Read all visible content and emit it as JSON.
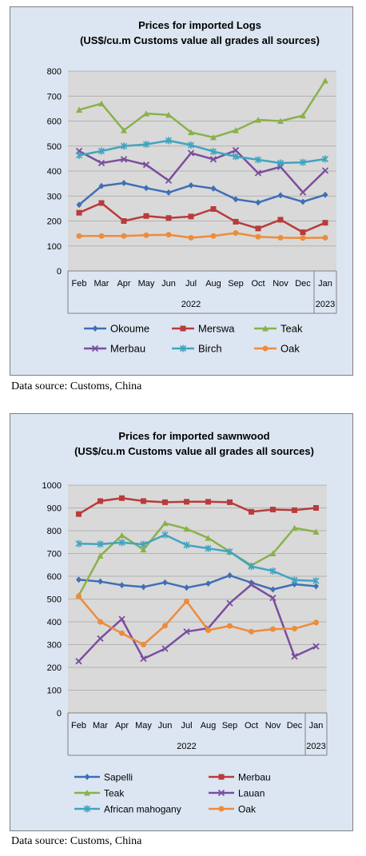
{
  "chart_data": [
    {
      "type": "line",
      "title": "Prices for imported Logs",
      "subtitle": "(US$/cu.m Customs value all grades all sources)",
      "ylim": [
        0,
        800
      ],
      "yticks": [
        0,
        100,
        200,
        300,
        400,
        500,
        600,
        700,
        800
      ],
      "categories": [
        "Feb",
        "Mar",
        "Apr",
        "May",
        "Jun",
        "Jul",
        "Aug",
        "Sep",
        "Oct",
        "Nov",
        "Dec",
        "Jan"
      ],
      "year_groups": [
        {
          "label": "2022",
          "span": 11
        },
        {
          "label": "2023",
          "span": 1
        }
      ],
      "grid": true,
      "legend_position": "bottom",
      "series": [
        {
          "name": "Okoume",
          "color": "#3f6fb5",
          "marker": "diamond",
          "values": [
            265,
            340,
            352,
            332,
            314,
            343,
            330,
            287,
            274,
            303,
            277,
            305
          ]
        },
        {
          "name": "Merswa",
          "color": "#b93b3b",
          "marker": "square",
          "values": [
            233,
            272,
            200,
            220,
            212,
            218,
            248,
            197,
            170,
            205,
            155,
            193
          ]
        },
        {
          "name": "Teak",
          "color": "#8ab14b",
          "marker": "triangle",
          "values": [
            645,
            670,
            563,
            630,
            625,
            555,
            535,
            563,
            605,
            600,
            622,
            762
          ]
        },
        {
          "name": "Merbau",
          "color": "#7a4e9e",
          "marker": "x",
          "values": [
            480,
            432,
            447,
            425,
            362,
            472,
            447,
            483,
            392,
            417,
            315,
            402
          ]
        },
        {
          "name": "Birch",
          "color": "#42a4bf",
          "marker": "star",
          "values": [
            463,
            480,
            500,
            507,
            522,
            504,
            478,
            458,
            445,
            432,
            435,
            448
          ]
        },
        {
          "name": "Oak",
          "color": "#ed8c3a",
          "marker": "circle",
          "values": [
            140,
            140,
            140,
            143,
            145,
            133,
            140,
            152,
            137,
            133,
            132,
            133
          ]
        }
      ],
      "source": "Data source: Customs, China"
    },
    {
      "type": "line",
      "title": "Prices for imported sawnwood",
      "subtitle": "(US$/cu.m Customs value all grades all sources)",
      "ylim": [
        0,
        1000
      ],
      "yticks": [
        0,
        100,
        200,
        300,
        400,
        500,
        600,
        700,
        800,
        900,
        1000
      ],
      "categories": [
        "Feb",
        "Mar",
        "Apr",
        "May",
        "Jun",
        "Jul",
        "Aug",
        "Sep",
        "Oct",
        "Nov",
        "Dec",
        "Jan"
      ],
      "year_groups": [
        {
          "label": "2022",
          "span": 11
        },
        {
          "label": "2023",
          "span": 1
        }
      ],
      "grid": true,
      "legend_position": "bottom",
      "series": [
        {
          "name": "Sapelli",
          "color": "#3f6fb5",
          "marker": "diamond",
          "values": [
            585,
            577,
            561,
            553,
            573,
            550,
            568,
            604,
            572,
            542,
            565,
            556
          ]
        },
        {
          "name": "Merbau",
          "color": "#b93b3b",
          "marker": "square",
          "values": [
            873,
            930,
            943,
            930,
            925,
            927,
            927,
            925,
            883,
            893,
            890,
            900
          ]
        },
        {
          "name": "Teak",
          "color": "#8ab14b",
          "marker": "triangle",
          "values": [
            515,
            690,
            780,
            717,
            833,
            808,
            768,
            708,
            648,
            700,
            812,
            795
          ]
        },
        {
          "name": "Lauan",
          "color": "#7a4e9e",
          "marker": "x",
          "values": [
            227,
            327,
            412,
            238,
            282,
            357,
            372,
            482,
            563,
            505,
            248,
            292
          ]
        },
        {
          "name": "African mahogany",
          "color": "#42a4bf",
          "marker": "star",
          "values": [
            743,
            741,
            748,
            740,
            782,
            737,
            722,
            708,
            643,
            623,
            583,
            580
          ]
        },
        {
          "name": "Oak",
          "color": "#ed8c3a",
          "marker": "circle",
          "values": [
            512,
            400,
            350,
            300,
            383,
            490,
            363,
            382,
            357,
            368,
            370,
            397
          ]
        }
      ],
      "source": "Data source: Customs, China"
    }
  ]
}
